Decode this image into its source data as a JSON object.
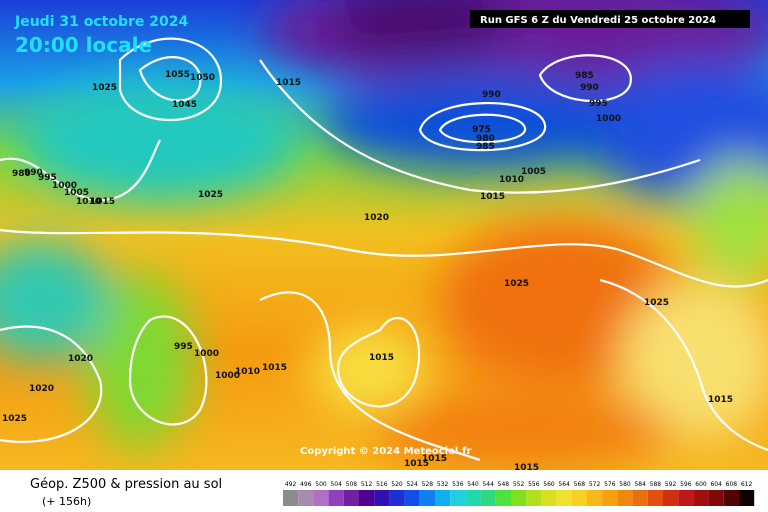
{
  "header": {
    "date": "Jeudi 31 octobre 2024",
    "time": "20:00 locale",
    "run": "Run GFS 6 Z du Vendredi 25 octobre 2024"
  },
  "copyright": "Copyright © 2024 Meteociel.fr",
  "legend": {
    "title": "Géop. Z500 & pression au sol",
    "lead": "(+ 156h)",
    "scale": [
      492,
      496,
      500,
      504,
      508,
      512,
      516,
      520,
      524,
      528,
      532,
      536,
      540,
      544,
      548,
      552,
      556,
      560,
      564,
      568,
      572,
      576,
      580,
      584,
      588,
      592,
      596,
      600,
      604,
      608,
      612
    ]
  },
  "isobar_labels": [
    1055,
    1050,
    1045,
    1025,
    1015,
    1025,
    1020,
    990,
    985,
    990,
    995,
    1000,
    975,
    980,
    985,
    1005,
    1010,
    1015,
    1025,
    1025,
    995,
    1000,
    1000,
    1010,
    1015,
    1015,
    1020,
    1020,
    1025,
    1015,
    1015,
    1015,
    1015,
    1015,
    1010,
    1005,
    1000,
    995,
    990,
    980
  ]
}
